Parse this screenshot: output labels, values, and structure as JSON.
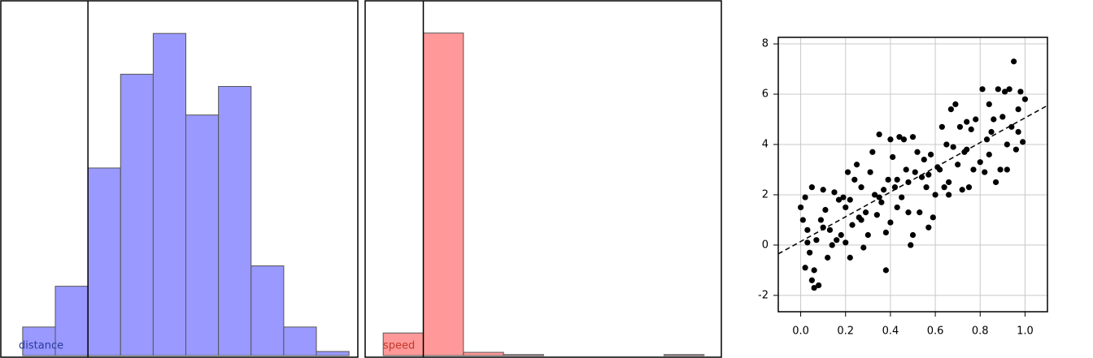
{
  "chart_data": [
    {
      "type": "histogram",
      "xlabel": "distance",
      "color": "#9999ff",
      "label_color": "#2b3a9e",
      "bins": [
        -2,
        -1,
        0,
        1,
        2,
        3,
        4,
        5,
        6,
        7,
        8
      ],
      "values": [
        7,
        17,
        46,
        69,
        79,
        59,
        66,
        22,
        7,
        1
      ],
      "xlim": [
        -2.67,
        8.27
      ],
      "ylim": [
        0,
        87
      ],
      "vline": 0
    },
    {
      "type": "histogram",
      "xlabel": "speed",
      "color": "#ff9999",
      "label_color": "#c0392b",
      "bins": [
        -1,
        0,
        1,
        2,
        3,
        4,
        5,
        6,
        7
      ],
      "values": [
        7,
        100,
        1,
        0.3,
        0,
        0,
        0,
        0.3
      ],
      "xlim": [
        -1.45,
        7.43
      ],
      "ylim": [
        0,
        110
      ],
      "vline": 0
    },
    {
      "type": "scatter",
      "color": "#000000",
      "grid": true,
      "xlim": [
        -0.1,
        1.1
      ],
      "ylim": [
        -2.65,
        8.26
      ],
      "xticks": [
        {
          "value": 0,
          "label": "0.0"
        },
        0.2,
        0.4,
        0.6,
        0.8,
        {
          "value": 1,
          "label": "1.0"
        }
      ],
      "yticks": [
        -2,
        0,
        2,
        4,
        6,
        8
      ],
      "x": [
        0.0,
        0.01,
        0.02,
        0.02,
        0.03,
        0.04,
        0.05,
        0.05,
        0.06,
        0.07,
        0.08,
        0.09,
        0.1,
        0.12,
        0.13,
        0.15,
        0.16,
        0.17,
        0.18,
        0.19,
        0.2,
        0.2,
        0.21,
        0.22,
        0.23,
        0.24,
        0.25,
        0.26,
        0.27,
        0.28,
        0.29,
        0.3,
        0.31,
        0.32,
        0.33,
        0.34,
        0.35,
        0.36,
        0.37,
        0.38,
        0.38,
        0.39,
        0.4,
        0.4,
        0.41,
        0.42,
        0.43,
        0.44,
        0.45,
        0.46,
        0.47,
        0.48,
        0.49,
        0.5,
        0.5,
        0.51,
        0.52,
        0.53,
        0.54,
        0.55,
        0.56,
        0.57,
        0.58,
        0.59,
        0.6,
        0.61,
        0.62,
        0.63,
        0.64,
        0.65,
        0.66,
        0.67,
        0.68,
        0.69,
        0.7,
        0.71,
        0.72,
        0.73,
        0.74,
        0.75,
        0.76,
        0.77,
        0.78,
        0.8,
        0.81,
        0.82,
        0.83,
        0.84,
        0.85,
        0.86,
        0.87,
        0.88,
        0.89,
        0.9,
        0.91,
        0.92,
        0.93,
        0.94,
        0.95,
        0.96,
        0.97,
        0.98,
        0.99,
        1.0,
        0.03,
        0.06,
        0.11,
        0.14,
        0.22,
        0.27,
        0.35,
        0.43,
        0.48,
        0.57,
        0.66,
        0.74,
        0.84,
        0.92,
        0.97,
        0.1
      ],
      "values": [
        1.5,
        1.0,
        -0.9,
        1.9,
        0.6,
        -0.3,
        2.3,
        -1.4,
        -1.7,
        0.2,
        -1.6,
        1.0,
        2.2,
        -0.5,
        0.6,
        2.1,
        0.2,
        1.8,
        0.4,
        1.9,
        0.1,
        1.5,
        2.9,
        -0.5,
        0.8,
        2.6,
        3.2,
        1.1,
        2.3,
        -0.1,
        1.3,
        0.4,
        2.9,
        3.7,
        2.0,
        1.2,
        4.4,
        1.7,
        2.2,
        0.5,
        -1.0,
        2.6,
        4.2,
        0.9,
        3.5,
        2.3,
        1.5,
        4.3,
        1.9,
        4.2,
        3.0,
        2.5,
        0.0,
        4.3,
        0.4,
        2.9,
        3.7,
        1.3,
        2.7,
        3.4,
        2.3,
        0.7,
        3.6,
        1.1,
        2.0,
        3.1,
        3.0,
        4.7,
        2.3,
        4.0,
        2.0,
        5.4,
        3.9,
        5.6,
        3.2,
        4.7,
        2.2,
        3.7,
        4.9,
        2.3,
        4.6,
        3.0,
        5.0,
        3.3,
        6.2,
        2.9,
        4.2,
        5.6,
        4.5,
        5.0,
        2.5,
        6.2,
        3.0,
        5.1,
        6.1,
        4.0,
        6.2,
        4.7,
        7.3,
        3.8,
        5.4,
        6.1,
        4.1,
        5.8,
        0.1,
        -1.0,
        1.4,
        0.0,
        1.8,
        1.0,
        1.9,
        2.6,
        1.3,
        2.8,
        2.5,
        3.8,
        3.6,
        3.0,
        4.5,
        0.7
      ],
      "fit": {
        "x": [
          -0.1,
          1.1
        ],
        "y": [
          -0.35,
          5.55
        ]
      }
    }
  ]
}
